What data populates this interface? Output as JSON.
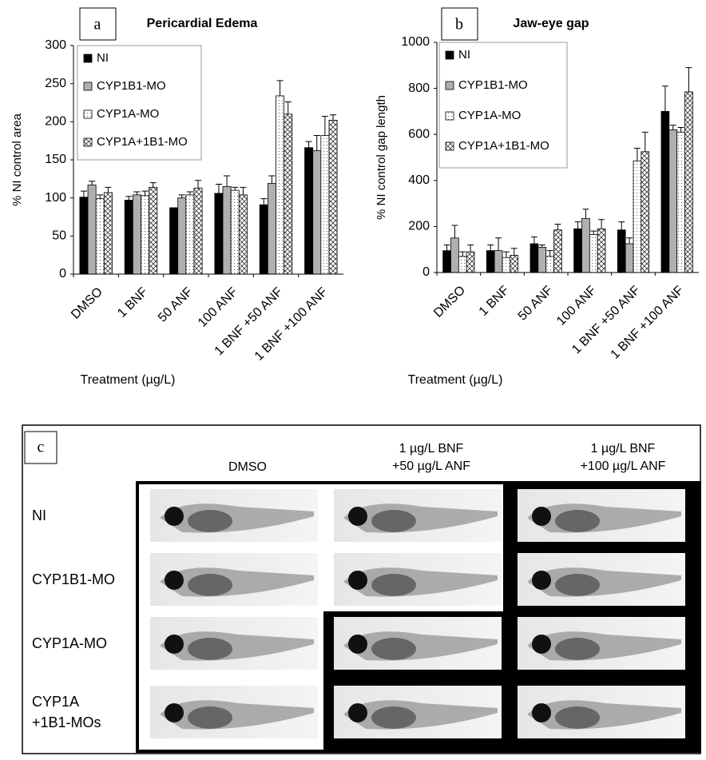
{
  "chart_data": [
    {
      "type": "bar",
      "letter": "a",
      "title": "Pericardial Edema",
      "y_label": "% NI control area",
      "x_label": "Treatment (µg/L)",
      "categories": [
        "DMSO",
        "1 BNF",
        "50 ANF",
        "100 ANF",
        "1 BNF +50 ANF",
        "1 BNF +100 ANF"
      ],
      "ylim": [
        0,
        300
      ],
      "yticks": [
        0,
        50,
        100,
        150,
        200,
        250,
        300
      ],
      "grid": false,
      "legend": "upper-left",
      "series": [
        {
          "name": "NI",
          "color": "#000000",
          "pattern": "solid",
          "values": [
            101,
            97,
            87,
            106,
            91,
            166
          ],
          "errors": [
            8,
            5,
            0,
            12,
            8,
            8
          ]
        },
        {
          "name": "CYP1B1-MO",
          "color": "#b0b0b0",
          "pattern": "solid",
          "values": [
            117,
            104,
            100,
            115,
            119,
            162
          ],
          "errors": [
            5,
            4,
            4,
            14,
            10,
            20
          ]
        },
        {
          "name": "CYP1A-MO",
          "color": "#ffffff",
          "pattern": "dots",
          "values": [
            99,
            103,
            104,
            110,
            234,
            182
          ],
          "errors": [
            5,
            6,
            4,
            4,
            20,
            25
          ]
        },
        {
          "name": "CYP1A+1B1-MO",
          "color": "#ffffff",
          "pattern": "crosshatch",
          "values": [
            107,
            114,
            113,
            104,
            210,
            202
          ],
          "errors": [
            7,
            6,
            10,
            10,
            16,
            7
          ]
        }
      ]
    },
    {
      "type": "bar",
      "letter": "b",
      "title": "Jaw-eye gap",
      "y_label": "% NI control gap length",
      "x_label": "Treatment (µg/L)",
      "categories": [
        "DMSO",
        "1 BNF",
        "50 ANF",
        "100 ANF",
        "1 BNF +50 ANF",
        "1 BNF +100 ANF"
      ],
      "ylim": [
        0,
        1000
      ],
      "yticks": [
        0,
        200,
        400,
        600,
        800,
        1000
      ],
      "grid": false,
      "legend": "upper-left",
      "series": [
        {
          "name": "NI",
          "color": "#000000",
          "pattern": "solid",
          "values": [
            95,
            95,
            125,
            190,
            185,
            700
          ],
          "errors": [
            25,
            25,
            30,
            30,
            35,
            110
          ]
        },
        {
          "name": "CYP1B1-MO",
          "color": "#b0b0b0",
          "pattern": "solid",
          "values": [
            150,
            95,
            110,
            235,
            125,
            620
          ],
          "errors": [
            55,
            55,
            10,
            40,
            25,
            20
          ]
        },
        {
          "name": "CYP1A-MO",
          "color": "#ffffff",
          "pattern": "dots",
          "values": [
            70,
            65,
            70,
            165,
            485,
            610
          ],
          "errors": [
            20,
            25,
            25,
            15,
            55,
            20
          ]
        },
        {
          "name": "CYP1A+1B1-MO",
          "color": "#ffffff",
          "pattern": "crosshatch",
          "values": [
            90,
            75,
            185,
            190,
            525,
            785
          ],
          "errors": [
            30,
            30,
            25,
            40,
            85,
            105
          ]
        }
      ]
    }
  ],
  "panel_c": {
    "letter": "c",
    "columns": [
      [
        "DMSO"
      ],
      [
        "1 µg/L BNF",
        "+50 µg/L ANF"
      ],
      [
        "1 µg/L BNF",
        "+100 µg/L ANF"
      ]
    ],
    "rows": [
      [
        "NI"
      ],
      [
        "CYP1B1-MO"
      ],
      [
        "CYP1A-MO"
      ],
      [
        "CYP1A",
        "+1B1-MOs"
      ]
    ]
  }
}
